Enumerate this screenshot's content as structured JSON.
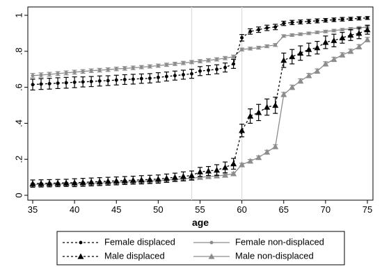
{
  "chart_data": {
    "type": "line",
    "title": "",
    "xlabel": "age",
    "ylabel": "",
    "xlim": [
      35,
      75
    ],
    "ylim": [
      0,
      1
    ],
    "x_ticks": [
      35,
      40,
      45,
      50,
      55,
      60,
      65,
      70,
      75
    ],
    "x_tick_labels": [
      "35",
      "40",
      "45",
      "50",
      "55",
      "60",
      "65",
      "70",
      "75"
    ],
    "y_ticks": [
      0,
      0.2,
      0.4,
      0.6,
      0.8,
      1
    ],
    "y_tick_labels": [
      "0",
      ".2",
      ".4",
      ".6",
      ".8",
      "1"
    ],
    "reference_lines_x": [
      54,
      60
    ],
    "grid": false,
    "legend_position": "bottom",
    "x": [
      35,
      36,
      37,
      38,
      39,
      40,
      41,
      42,
      43,
      44,
      45,
      46,
      47,
      48,
      49,
      50,
      51,
      52,
      53,
      54,
      55,
      56,
      57,
      58,
      59,
      60,
      61,
      62,
      63,
      64,
      65,
      66,
      67,
      68,
      69,
      70,
      71,
      72,
      73,
      74,
      75
    ],
    "series": [
      {
        "name": "Female displaced",
        "color": "#000000",
        "line_style": "dashed",
        "marker": "circle",
        "values": [
          0.615,
          0.618,
          0.62,
          0.623,
          0.625,
          0.628,
          0.63,
          0.632,
          0.635,
          0.637,
          0.64,
          0.643,
          0.645,
          0.648,
          0.65,
          0.655,
          0.66,
          0.665,
          0.67,
          0.675,
          0.69,
          0.695,
          0.7,
          0.71,
          0.73,
          0.875,
          0.91,
          0.92,
          0.93,
          0.935,
          0.955,
          0.96,
          0.963,
          0.966,
          0.969,
          0.972,
          0.975,
          0.978,
          0.98,
          0.983,
          0.985
        ],
        "errors": [
          0.03,
          0.03,
          0.03,
          0.03,
          0.03,
          0.03,
          0.028,
          0.028,
          0.028,
          0.027,
          0.027,
          0.027,
          0.027,
          0.026,
          0.026,
          0.026,
          0.025,
          0.025,
          0.025,
          0.025,
          0.025,
          0.025,
          0.025,
          0.025,
          0.025,
          0.018,
          0.015,
          0.015,
          0.015,
          0.015,
          0.012,
          0.012,
          0.011,
          0.011,
          0.011,
          0.01,
          0.01,
          0.01,
          0.009,
          0.009,
          0.008
        ]
      },
      {
        "name": "Female non-displaced",
        "color": "#8c8c8c",
        "line_style": "solid",
        "marker": "circle",
        "values": [
          0.665,
          0.668,
          0.672,
          0.676,
          0.68,
          0.684,
          0.688,
          0.692,
          0.695,
          0.698,
          0.702,
          0.705,
          0.708,
          0.712,
          0.716,
          0.72,
          0.725,
          0.73,
          0.735,
          0.74,
          0.745,
          0.75,
          0.755,
          0.762,
          0.77,
          0.81,
          0.815,
          0.82,
          0.828,
          0.835,
          0.885,
          0.89,
          0.895,
          0.9,
          0.905,
          0.91,
          0.915,
          0.92,
          0.925,
          0.93,
          0.935
        ],
        "errors": [
          0.012,
          0.012,
          0.011,
          0.011,
          0.011,
          0.011,
          0.01,
          0.01,
          0.01,
          0.01,
          0.01,
          0.01,
          0.01,
          0.009,
          0.009,
          0.009,
          0.009,
          0.009,
          0.009,
          0.009,
          0.009,
          0.009,
          0.009,
          0.009,
          0.009,
          0.008,
          0.008,
          0.008,
          0.008,
          0.008,
          0.007,
          0.007,
          0.007,
          0.007,
          0.007,
          0.007,
          0.007,
          0.007,
          0.007,
          0.007,
          0.006
        ]
      },
      {
        "name": "Male displaced",
        "color": "#000000",
        "line_style": "dashed",
        "marker": "triangle",
        "values": [
          0.065,
          0.066,
          0.067,
          0.068,
          0.069,
          0.07,
          0.072,
          0.074,
          0.076,
          0.078,
          0.08,
          0.082,
          0.084,
          0.086,
          0.088,
          0.09,
          0.095,
          0.1,
          0.105,
          0.11,
          0.13,
          0.135,
          0.14,
          0.155,
          0.175,
          0.36,
          0.44,
          0.46,
          0.49,
          0.5,
          0.75,
          0.77,
          0.79,
          0.81,
          0.82,
          0.85,
          0.86,
          0.875,
          0.89,
          0.9,
          0.92
        ],
        "errors": [
          0.02,
          0.02,
          0.02,
          0.02,
          0.02,
          0.022,
          0.022,
          0.022,
          0.022,
          0.022,
          0.022,
          0.022,
          0.022,
          0.023,
          0.023,
          0.023,
          0.023,
          0.023,
          0.025,
          0.025,
          0.025,
          0.025,
          0.03,
          0.03,
          0.03,
          0.035,
          0.04,
          0.045,
          0.045,
          0.045,
          0.04,
          0.04,
          0.04,
          0.035,
          0.035,
          0.035,
          0.035,
          0.03,
          0.03,
          0.03,
          0.025
        ]
      },
      {
        "name": "Male non-displaced",
        "color": "#8c8c8c",
        "line_style": "solid",
        "marker": "triangle",
        "values": [
          0.06,
          0.061,
          0.062,
          0.063,
          0.064,
          0.065,
          0.066,
          0.067,
          0.068,
          0.07,
          0.072,
          0.074,
          0.076,
          0.078,
          0.08,
          0.082,
          0.085,
          0.088,
          0.092,
          0.095,
          0.1,
          0.104,
          0.108,
          0.112,
          0.12,
          0.17,
          0.19,
          0.21,
          0.24,
          0.27,
          0.56,
          0.6,
          0.635,
          0.665,
          0.69,
          0.73,
          0.755,
          0.78,
          0.8,
          0.825,
          0.865
        ],
        "errors": [
          0.006,
          0.006,
          0.006,
          0.006,
          0.006,
          0.006,
          0.006,
          0.006,
          0.006,
          0.006,
          0.006,
          0.006,
          0.006,
          0.006,
          0.006,
          0.006,
          0.006,
          0.006,
          0.006,
          0.006,
          0.006,
          0.006,
          0.007,
          0.007,
          0.007,
          0.008,
          0.009,
          0.009,
          0.01,
          0.011,
          0.012,
          0.012,
          0.012,
          0.012,
          0.012,
          0.012,
          0.012,
          0.012,
          0.012,
          0.012,
          0.012
        ]
      }
    ]
  }
}
